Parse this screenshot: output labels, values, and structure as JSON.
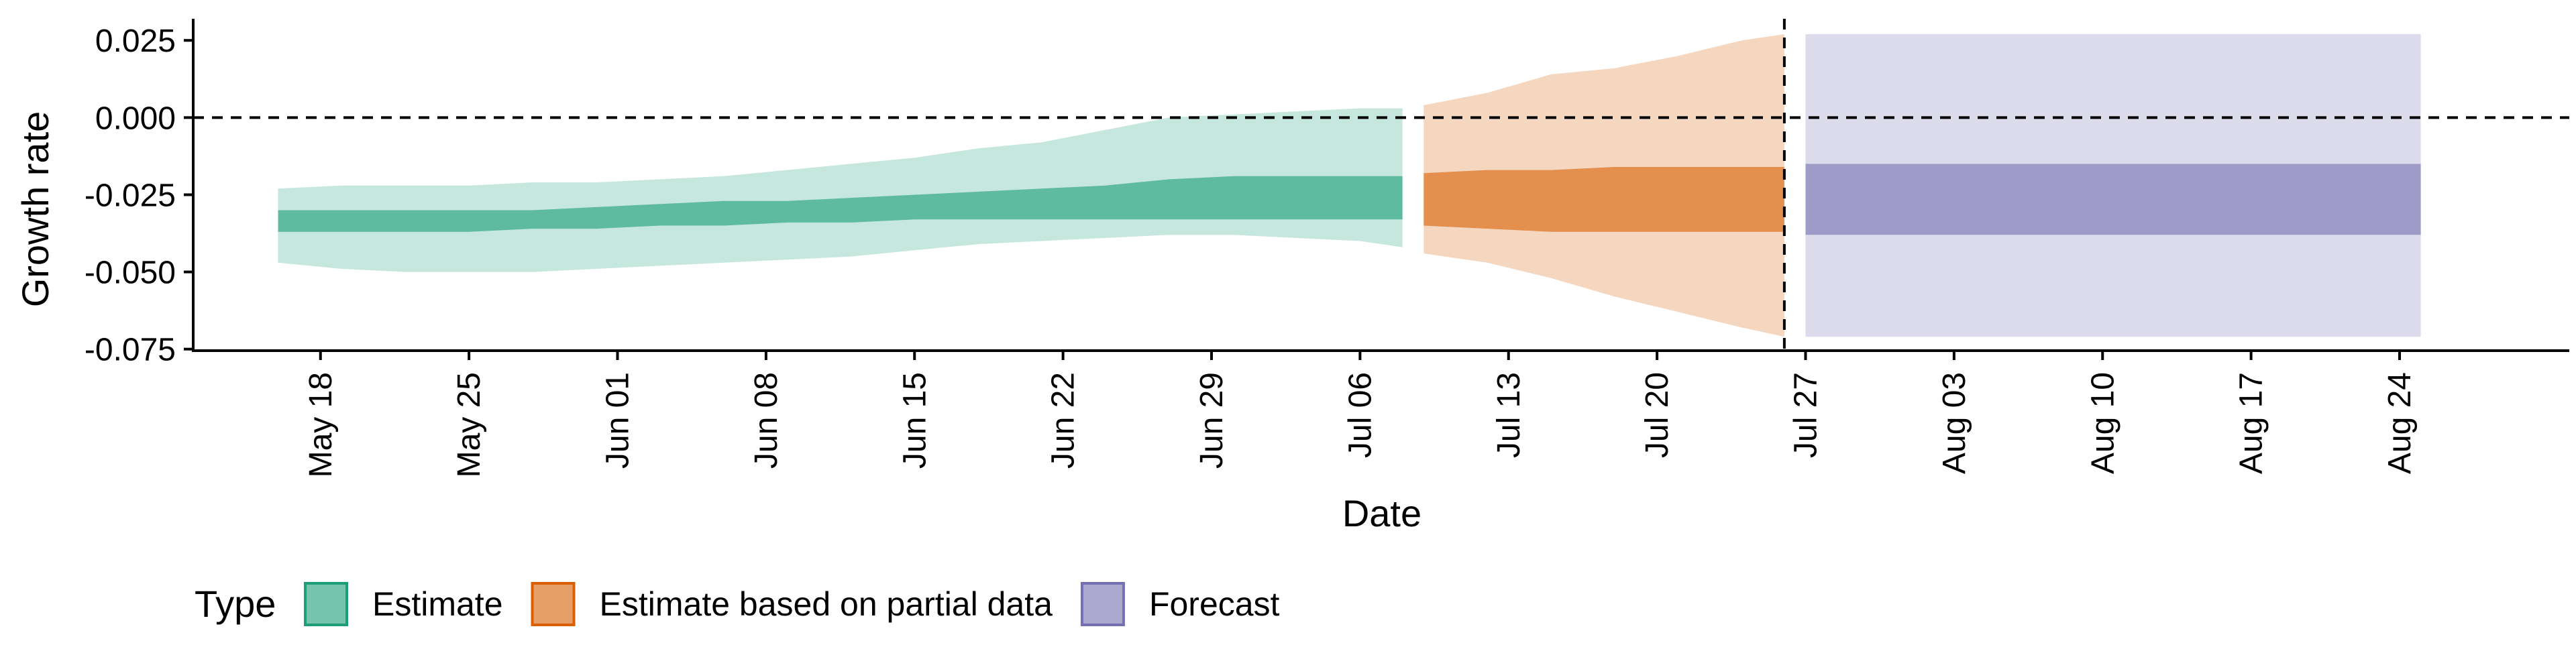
{
  "chart_data": {
    "type": "area",
    "title": "",
    "xlabel": "Date",
    "ylabel": "Growth rate",
    "xlim": [
      "2021-05-12",
      "2021-09-01"
    ],
    "ylim": [
      -0.0755,
      0.032
    ],
    "grid": false,
    "x_ticks": [
      "2021-05-18",
      "2021-05-25",
      "2021-06-01",
      "2021-06-08",
      "2021-06-15",
      "2021-06-22",
      "2021-06-29",
      "2021-07-06",
      "2021-07-13",
      "2021-07-20",
      "2021-07-27",
      "2021-08-03",
      "2021-08-10",
      "2021-08-17",
      "2021-08-24"
    ],
    "x_tick_labels": [
      "May 18",
      "May 25",
      "Jun 01",
      "Jun 08",
      "Jun 15",
      "Jun 22",
      "Jun 29",
      "Jul 06",
      "Jul 13",
      "Jul 20",
      "Jul 27",
      "Aug 03",
      "Aug 10",
      "Aug 17",
      "Aug 24"
    ],
    "y_ticks": [
      0.025,
      0.0,
      -0.025,
      -0.05,
      -0.075
    ],
    "y_tick_labels": [
      "0.025",
      "0.000",
      "-0.025",
      "-0.050",
      "-0.075"
    ],
    "reference_lines": {
      "horizontal_y": 0.0,
      "vertical_x": "2021-07-26"
    },
    "legend": {
      "title": "Type",
      "placement": "bottom",
      "items": [
        {
          "label": "Estimate",
          "color": "#1b9e77"
        },
        {
          "label": "Estimate based on partial data",
          "color": "#d95f02"
        },
        {
          "label": "Forecast",
          "color": "#7570b3"
        }
      ]
    },
    "series": [
      {
        "name": "Estimate",
        "color": "#1b9e77",
        "x": [
          "2021-05-16",
          "2021-05-19",
          "2021-05-22",
          "2021-05-25",
          "2021-05-28",
          "2021-05-31",
          "2021-06-03",
          "2021-06-06",
          "2021-06-09",
          "2021-06-12",
          "2021-06-15",
          "2021-06-18",
          "2021-06-21",
          "2021-06-24",
          "2021-06-27",
          "2021-06-30",
          "2021-07-03",
          "2021-07-06",
          "2021-07-08"
        ],
        "lower90": [
          -0.047,
          -0.049,
          -0.05,
          -0.05,
          -0.05,
          -0.049,
          -0.048,
          -0.047,
          -0.046,
          -0.045,
          -0.043,
          -0.041,
          -0.04,
          -0.039,
          -0.038,
          -0.038,
          -0.039,
          -0.04,
          -0.042
        ],
        "upper90": [
          -0.023,
          -0.022,
          -0.022,
          -0.022,
          -0.021,
          -0.021,
          -0.02,
          -0.019,
          -0.017,
          -0.015,
          -0.013,
          -0.01,
          -0.008,
          -0.004,
          0.0,
          0.001,
          0.002,
          0.003,
          0.003
        ],
        "lower50": [
          -0.037,
          -0.037,
          -0.037,
          -0.037,
          -0.036,
          -0.036,
          -0.035,
          -0.035,
          -0.034,
          -0.034,
          -0.033,
          -0.033,
          -0.033,
          -0.033,
          -0.033,
          -0.033,
          -0.033,
          -0.033,
          -0.033
        ],
        "upper50": [
          -0.03,
          -0.03,
          -0.03,
          -0.03,
          -0.03,
          -0.029,
          -0.028,
          -0.027,
          -0.027,
          -0.026,
          -0.025,
          -0.024,
          -0.023,
          -0.022,
          -0.02,
          -0.019,
          -0.019,
          -0.019,
          -0.019
        ]
      },
      {
        "name": "Estimate based on partial data",
        "color": "#d95f02",
        "x": [
          "2021-07-09",
          "2021-07-12",
          "2021-07-15",
          "2021-07-18",
          "2021-07-21",
          "2021-07-24",
          "2021-07-26"
        ],
        "lower90": [
          -0.044,
          -0.047,
          -0.052,
          -0.058,
          -0.063,
          -0.068,
          -0.071
        ],
        "upper90": [
          0.004,
          0.008,
          0.014,
          0.016,
          0.02,
          0.025,
          0.027
        ],
        "lower50": [
          -0.035,
          -0.036,
          -0.037,
          -0.037,
          -0.037,
          -0.037,
          -0.037
        ],
        "upper50": [
          -0.018,
          -0.017,
          -0.017,
          -0.016,
          -0.016,
          -0.016,
          -0.016
        ]
      },
      {
        "name": "Forecast",
        "color": "#7570b3",
        "x": [
          "2021-07-27",
          "2021-08-25"
        ],
        "lower90": [
          -0.071,
          -0.071
        ],
        "upper90": [
          0.027,
          0.027
        ],
        "lower50": [
          -0.038,
          -0.038
        ],
        "upper50": [
          -0.015,
          -0.015
        ]
      }
    ]
  }
}
